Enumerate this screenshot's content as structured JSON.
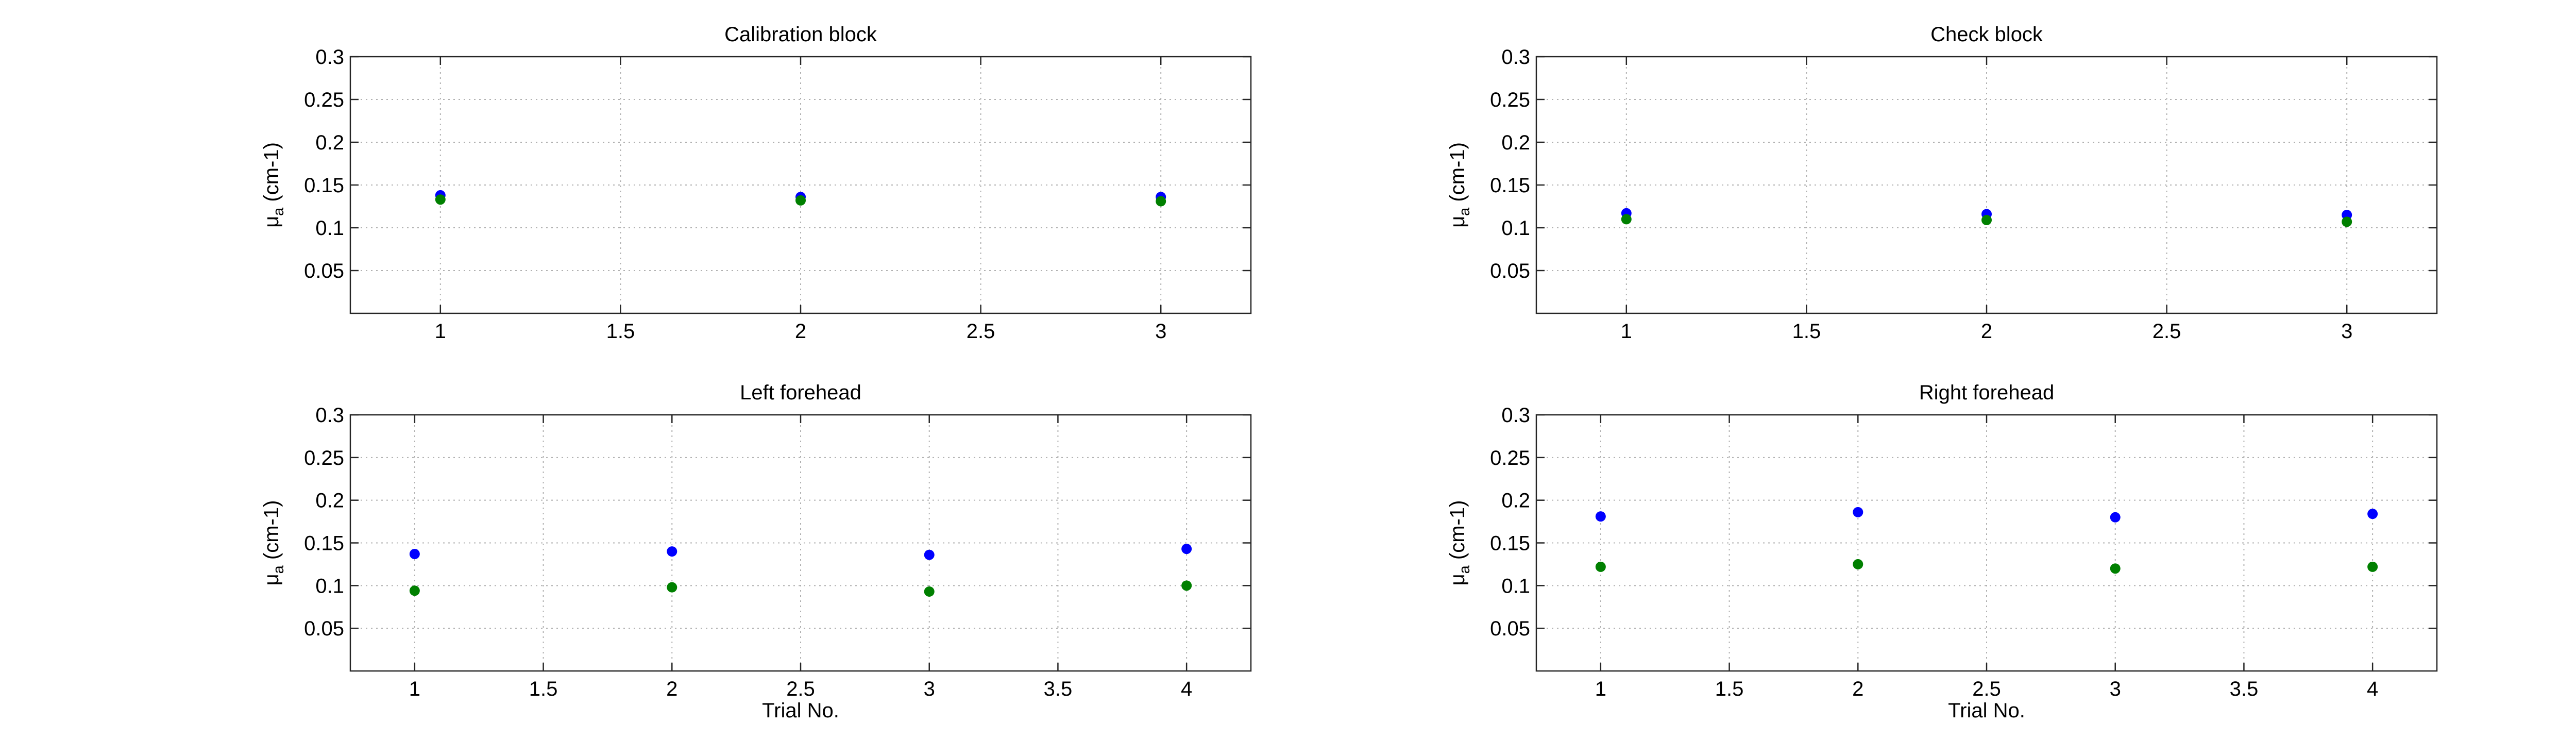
{
  "chart_data": [
    {
      "type": "scatter",
      "title": "Calibration block",
      "xlabel": "",
      "ylabel": {
        "symbol": "μ",
        "subscript": "a",
        "unit": " (cm-1)"
      },
      "xlim": [
        0.75,
        3.25
      ],
      "ylim": [
        0,
        0.3
      ],
      "xticks": [
        1,
        1.5,
        2,
        2.5,
        3
      ],
      "xtick_labels": [
        "1",
        "1.5",
        "2",
        "2.5",
        "3"
      ],
      "yticks": [
        0.05,
        0.1,
        0.15,
        0.2,
        0.25,
        0.3
      ],
      "ytick_labels": [
        "0.05",
        "0.1",
        "0.15",
        "0.2",
        "0.25",
        "0.3"
      ],
      "grid": true,
      "series": [
        {
          "color": "#0000ff",
          "x": [
            1,
            2,
            3
          ],
          "y": [
            0.138,
            0.136,
            0.136
          ]
        },
        {
          "color": "#008000",
          "x": [
            1,
            2,
            3
          ],
          "y": [
            0.133,
            0.132,
            0.131
          ]
        }
      ]
    },
    {
      "type": "scatter",
      "title": "Check block",
      "xlabel": "",
      "ylabel": {
        "symbol": "μ",
        "subscript": "a",
        "unit": " (cm-1)"
      },
      "xlim": [
        0.75,
        3.25
      ],
      "ylim": [
        0,
        0.3
      ],
      "xticks": [
        1,
        1.5,
        2,
        2.5,
        3
      ],
      "xtick_labels": [
        "1",
        "1.5",
        "2",
        "2.5",
        "3"
      ],
      "yticks": [
        0.05,
        0.1,
        0.15,
        0.2,
        0.25,
        0.3
      ],
      "ytick_labels": [
        "0.05",
        "0.1",
        "0.15",
        "0.2",
        "0.25",
        "0.3"
      ],
      "grid": true,
      "series": [
        {
          "color": "#0000ff",
          "x": [
            1,
            2,
            3
          ],
          "y": [
            0.117,
            0.116,
            0.115
          ]
        },
        {
          "color": "#008000",
          "x": [
            1,
            2,
            3
          ],
          "y": [
            0.11,
            0.109,
            0.107
          ]
        }
      ]
    },
    {
      "type": "scatter",
      "title": "Left forehead",
      "xlabel": "Trial No.",
      "ylabel": {
        "symbol": "μ",
        "subscript": "a",
        "unit": " (cm-1)"
      },
      "xlim": [
        0.75,
        4.25
      ],
      "ylim": [
        0,
        0.3
      ],
      "xticks": [
        1,
        1.5,
        2,
        2.5,
        3,
        3.5,
        4
      ],
      "xtick_labels": [
        "1",
        "1.5",
        "2",
        "2.5",
        "3",
        "3.5",
        "4"
      ],
      "yticks": [
        0.05,
        0.1,
        0.15,
        0.2,
        0.25,
        0.3
      ],
      "ytick_labels": [
        "0.05",
        "0.1",
        "0.15",
        "0.2",
        "0.25",
        "0.3"
      ],
      "grid": true,
      "series": [
        {
          "color": "#0000ff",
          "x": [
            1,
            2,
            3,
            4
          ],
          "y": [
            0.137,
            0.14,
            0.136,
            0.143
          ]
        },
        {
          "color": "#008000",
          "x": [
            1,
            2,
            3,
            4
          ],
          "y": [
            0.094,
            0.098,
            0.093,
            0.1
          ]
        }
      ]
    },
    {
      "type": "scatter",
      "title": "Right forehead",
      "xlabel": "Trial No.",
      "ylabel": {
        "symbol": "μ",
        "subscript": "a",
        "unit": " (cm-1)"
      },
      "xlim": [
        0.75,
        4.25
      ],
      "ylim": [
        0,
        0.3
      ],
      "xticks": [
        1,
        1.5,
        2,
        2.5,
        3,
        3.5,
        4
      ],
      "xtick_labels": [
        "1",
        "1.5",
        "2",
        "2.5",
        "3",
        "3.5",
        "4"
      ],
      "yticks": [
        0.05,
        0.1,
        0.15,
        0.2,
        0.25,
        0.3
      ],
      "ytick_labels": [
        "0.05",
        "0.1",
        "0.15",
        "0.2",
        "0.25",
        "0.3"
      ],
      "grid": true,
      "series": [
        {
          "color": "#0000ff",
          "x": [
            1,
            2,
            3,
            4
          ],
          "y": [
            0.181,
            0.186,
            0.18,
            0.184
          ]
        },
        {
          "color": "#008000",
          "x": [
            1,
            2,
            3,
            4
          ],
          "y": [
            0.122,
            0.125,
            0.12,
            0.122
          ]
        }
      ]
    }
  ]
}
